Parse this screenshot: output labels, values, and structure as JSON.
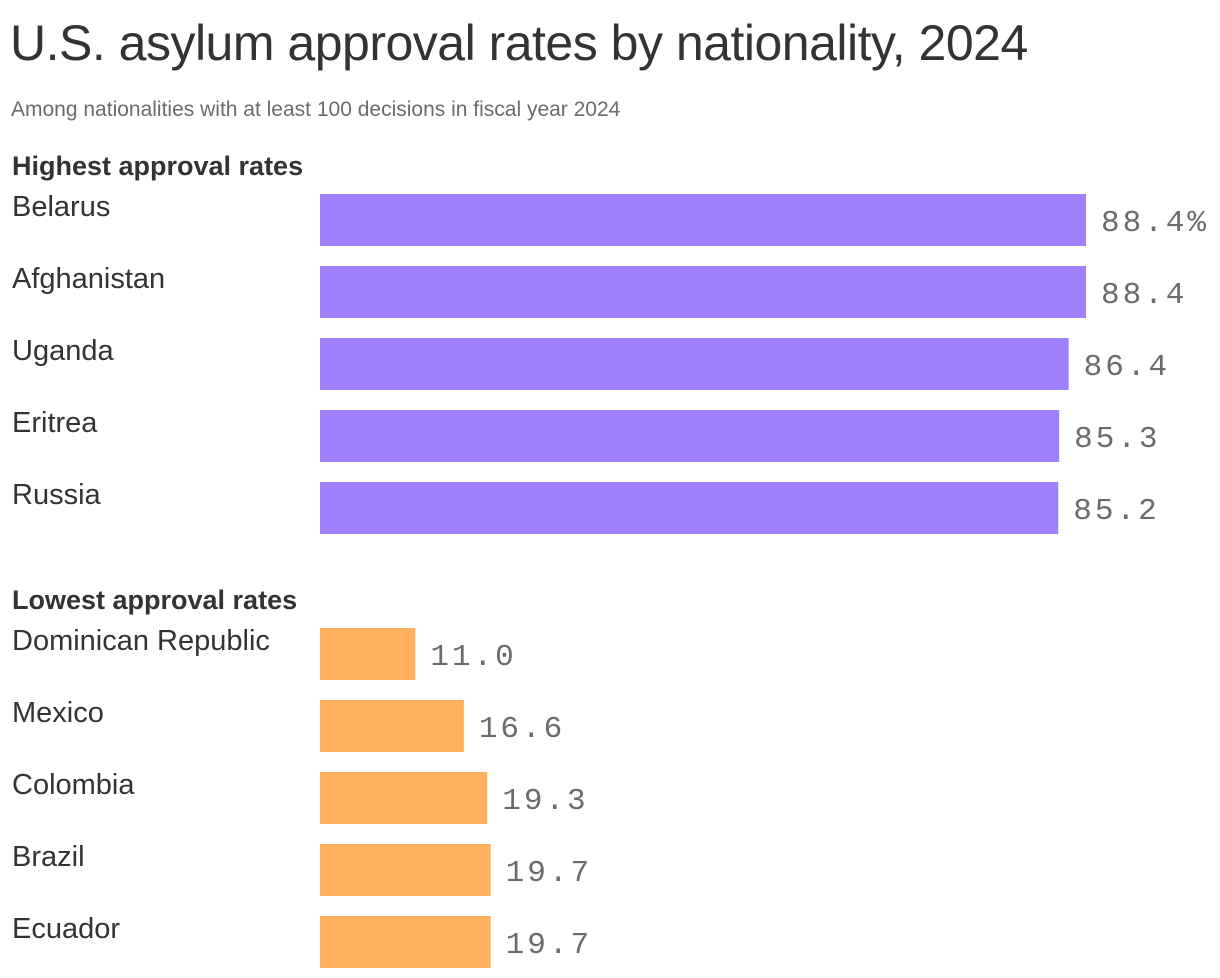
{
  "title": "U.S. asylum approval rates by nationality, 2024",
  "subtitle": "Among nationalities with at least 100 decisions in fiscal year 2024",
  "chart_data": {
    "type": "bar",
    "orientation": "horizontal",
    "unit": "%",
    "xlim": [
      0,
      100
    ],
    "grid": false,
    "groups": [
      {
        "label": "Highest approval rates",
        "color": "#a07ffc",
        "categories": [
          "Belarus",
          "Afghanistan",
          "Uganda",
          "Eritrea",
          "Russia"
        ],
        "values": [
          88.4,
          88.4,
          86.4,
          85.3,
          85.2
        ],
        "data_labels": [
          "88.4%",
          "88.4",
          "86.4",
          "85.3",
          "85.2"
        ]
      },
      {
        "label": "Lowest approval rates",
        "color": "#ffb05c",
        "categories": [
          "Dominican Republic",
          "Mexico",
          "Colombia",
          "Brazil",
          "Ecuador"
        ],
        "values": [
          11.0,
          16.6,
          19.3,
          19.7,
          19.7
        ],
        "data_labels": [
          "11.0",
          "16.6",
          "19.3",
          "19.7",
          "19.7"
        ]
      }
    ]
  }
}
